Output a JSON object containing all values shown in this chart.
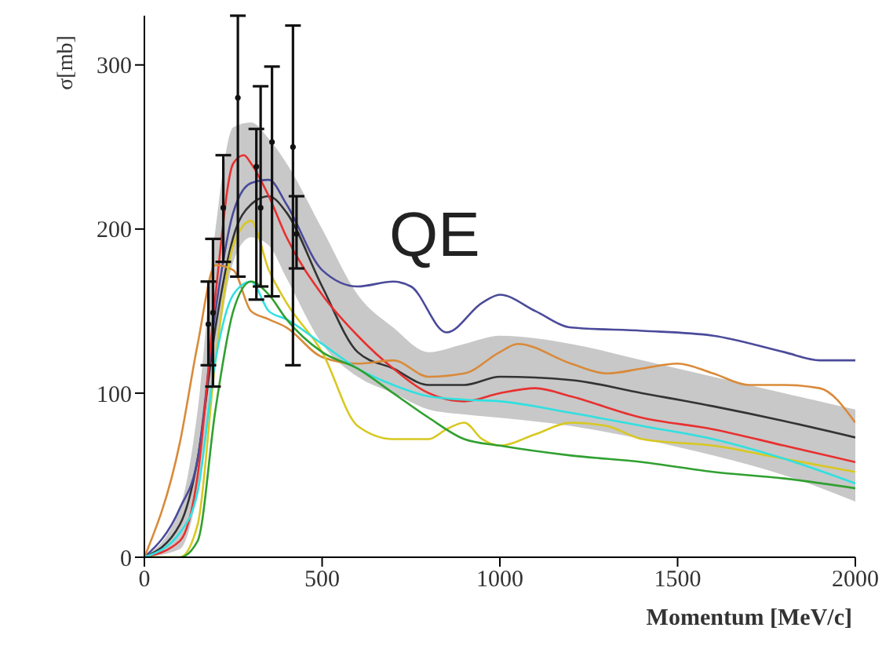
{
  "chart_data": {
    "type": "line",
    "xlabel": "Momentum [MeV/c]",
    "ylabel": "σ[mb]",
    "annotations": [
      "QE"
    ],
    "xlim": [
      0,
      2000
    ],
    "xticks": [
      0,
      500,
      1000,
      1500,
      2000
    ],
    "ylim": [
      0,
      330
    ],
    "yticks": [
      0,
      100,
      200,
      300
    ],
    "grid": false,
    "legend": false,
    "marker": "none",
    "line_style": "solid",
    "x": [
      0,
      100,
      150,
      200,
      250,
      300,
      350,
      400,
      500,
      600,
      700,
      800,
      900,
      1000,
      1200,
      1400,
      1600,
      1800,
      2000
    ],
    "series": [
      {
        "color": "#333333",
        "values": [
          0,
          20,
          60,
          140,
          195,
          215,
          220,
          210,
          165,
          125,
          115,
          105,
          105,
          110,
          108,
          100,
          92,
          83,
          73
        ],
        "lower": [
          0,
          5,
          40,
          120,
          180,
          195,
          190,
          170,
          130,
          110,
          100,
          90,
          87,
          85,
          80,
          72,
          62,
          50,
          34
        ],
        "upper": [
          0,
          30,
          90,
          200,
          262,
          265,
          255,
          240,
          200,
          160,
          140,
          125,
          130,
          135,
          130,
          120,
          110,
          100,
          90
        ]
      },
      {
        "color": "#4a4a9a",
        "x": [
          0,
          100,
          150,
          200,
          250,
          300,
          350,
          400,
          500,
          600,
          700,
          750,
          850,
          950,
          1000,
          1100,
          1200,
          1400,
          1600,
          1800,
          1900,
          2000
        ],
        "values": [
          0,
          30,
          60,
          150,
          210,
          228,
          230,
          215,
          175,
          165,
          168,
          165,
          137,
          155,
          160,
          150,
          140,
          138,
          135,
          125,
          120,
          120
        ]
      },
      {
        "color": "#e83030",
        "x": [
          0,
          100,
          150,
          200,
          250,
          280,
          300,
          350,
          400,
          500,
          600,
          700,
          800,
          900,
          1000,
          1100,
          1200,
          1400,
          1600,
          1800,
          2000
        ],
        "values": [
          0,
          10,
          50,
          160,
          240,
          245,
          240,
          220,
          195,
          160,
          135,
          115,
          100,
          95,
          100,
          103,
          98,
          85,
          78,
          68,
          58
        ]
      },
      {
        "color": "#d98a3a",
        "x": [
          0,
          100,
          150,
          200,
          250,
          300,
          350,
          400,
          500,
          600,
          700,
          800,
          900,
          1000,
          1050,
          1200,
          1300,
          1400,
          1500,
          1600,
          1700,
          1800,
          1900,
          2000
        ],
        "values": [
          0,
          70,
          130,
          178,
          175,
          150,
          145,
          140,
          122,
          118,
          120,
          110,
          112,
          125,
          130,
          118,
          112,
          115,
          118,
          112,
          105,
          105,
          103,
          82
        ]
      },
      {
        "color": "#d8c820",
        "x": [
          0,
          100,
          150,
          200,
          250,
          300,
          350,
          400,
          500,
          600,
          700,
          800,
          850,
          900,
          950,
          1000,
          1100,
          1200,
          1300,
          1400,
          1600,
          1800,
          2000
        ],
        "values": [
          0,
          0,
          20,
          120,
          190,
          205,
          175,
          155,
          125,
          80,
          72,
          72,
          78,
          82,
          72,
          68,
          75,
          82,
          80,
          72,
          68,
          60,
          52
        ]
      },
      {
        "color": "#30e0e0",
        "values": [
          0,
          15,
          40,
          120,
          160,
          168,
          150,
          145,
          130,
          115,
          105,
          98,
          96,
          95,
          88,
          80,
          72,
          60,
          45
        ]
      },
      {
        "color": "#30a030",
        "values": [
          0,
          0,
          10,
          90,
          150,
          168,
          160,
          145,
          125,
          115,
          100,
          85,
          72,
          68,
          62,
          58,
          52,
          48,
          42
        ]
      },
      {
        "type": "scatter",
        "marker": "circle",
        "color": "#111111",
        "x": [
          180,
          193,
          222,
          263,
          315,
          327,
          359,
          418,
          428
        ],
        "values": [
          142,
          149,
          213,
          280,
          238,
          213,
          253,
          250,
          197
        ],
        "errors": [
          [
            117,
            168
          ],
          [
            104,
            194
          ],
          [
            180,
            245
          ],
          [
            171,
            330
          ],
          [
            157,
            261
          ],
          [
            165,
            287
          ],
          [
            159,
            299
          ],
          [
            117,
            324
          ],
          [
            176,
            220
          ]
        ]
      }
    ]
  }
}
